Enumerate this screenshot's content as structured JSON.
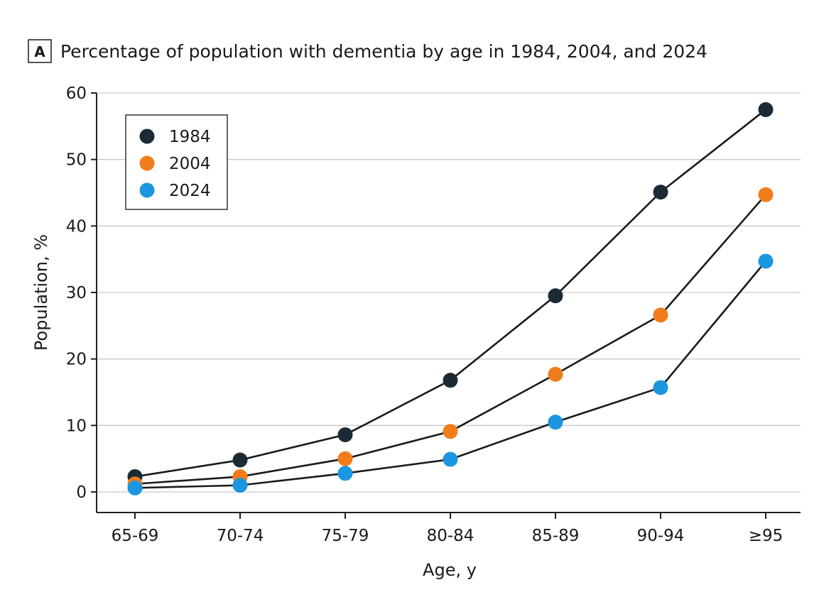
{
  "panel_label": "A",
  "chart_data": {
    "type": "line",
    "title": "Percentage of population with dementia by age in 1984, 2004, and 2024",
    "xlabel": "Age, y",
    "ylabel": "Population, %",
    "categories": [
      "65-69",
      "70-74",
      "75-79",
      "80-84",
      "85-89",
      "90-94",
      "≥95"
    ],
    "ylim": [
      0,
      60
    ],
    "yticks": [
      0,
      10,
      20,
      30,
      40,
      50,
      60
    ],
    "grid": true,
    "legend_position": "top-left",
    "series": [
      {
        "name": "1984",
        "color": "#1b2b35",
        "values": [
          2.3,
          4.8,
          8.6,
          16.8,
          29.5,
          45.1,
          57.5
        ]
      },
      {
        "name": "2004",
        "color": "#f07d1a",
        "values": [
          1.2,
          2.3,
          5.0,
          9.1,
          17.7,
          26.6,
          44.7
        ]
      },
      {
        "name": "2024",
        "color": "#1b96e0",
        "values": [
          0.6,
          1.0,
          2.8,
          4.9,
          10.5,
          15.7,
          34.7
        ]
      }
    ]
  }
}
